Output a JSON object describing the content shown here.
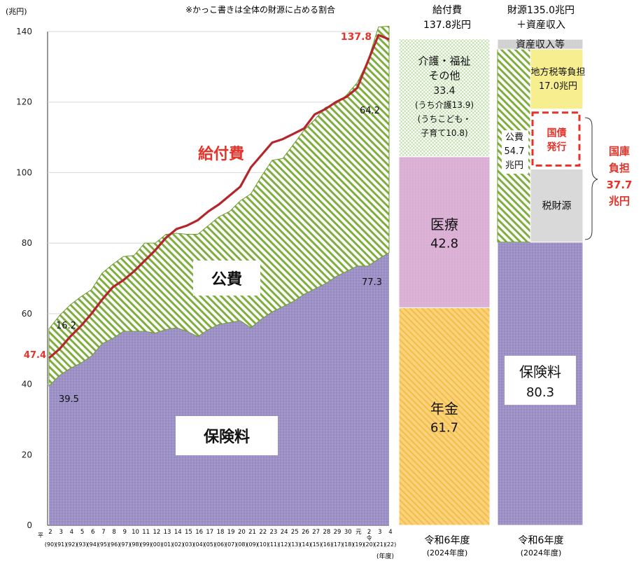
{
  "chart_data": {
    "type": "area",
    "note": "※かっこ書きは全体の財源に占める割合",
    "yunit": "(兆円)",
    "ylim": [
      0,
      140
    ],
    "yticks": [
      0,
      20,
      40,
      60,
      80,
      100,
      120,
      140
    ],
    "xunit": "(年度)",
    "x_heisei": [
      "平",
      "2",
      "3",
      "4",
      "5",
      "6",
      "7",
      "8",
      "9",
      "10",
      "11",
      "12",
      "13",
      "14",
      "15",
      "16",
      "17",
      "18",
      "19",
      "20",
      "21",
      "22",
      "23",
      "24",
      "25",
      "26",
      "27",
      "28",
      "29",
      "30",
      "元",
      "2",
      "3",
      "4"
    ],
    "x_western": [
      "(90)",
      "(91)",
      "(92)",
      "(93)",
      "(94)",
      "(95)",
      "(96)",
      "(97)",
      "(98)",
      "(99)",
      "(00)",
      "(01)",
      "(02)",
      "(03)",
      "(04)",
      "(05)",
      "(06)",
      "(07)",
      "(08)",
      "(09)",
      "(10)",
      "(11)",
      "(12)",
      "(13)",
      "(14)",
      "(15)",
      "(16)",
      "(17)",
      "(18)",
      "(19)",
      "(20)",
      "(21)",
      "(22)"
    ],
    "x_era_mark": "令",
    "series": [
      {
        "name": "保険料",
        "values": [
          39.5,
          42.5,
          44.5,
          46,
          48,
          51.5,
          53,
          55,
          55,
          55,
          54.5,
          55.5,
          56,
          55,
          53.5,
          55.5,
          57,
          57.5,
          58,
          56,
          58.5,
          60.5,
          62,
          63.5,
          65.5,
          67,
          68.5,
          70.5,
          72,
          73.5,
          73.5,
          75.5,
          77.3
        ]
      },
      {
        "name": "公費",
        "values": [
          16.2,
          17,
          18,
          18.8,
          18.8,
          20,
          21,
          21.2,
          21.5,
          25,
          25.5,
          27,
          26.8,
          27.5,
          29,
          29.5,
          30.5,
          31.5,
          34,
          38,
          40.5,
          43,
          42,
          44.5,
          46.5,
          48,
          50,
          49,
          50,
          52,
          58.2,
          65.8,
          64.2
        ]
      },
      {
        "name": "給付費",
        "values": [
          47.4,
          50,
          53.5,
          56.5,
          60,
          64,
          67.5,
          69.5,
          72,
          75,
          78,
          81.5,
          84,
          85,
          86.5,
          89,
          91,
          93.5,
          96,
          101.5,
          105,
          108.5,
          109.5,
          111,
          112.5,
          116.5,
          118,
          120,
          121.5,
          124,
          131.5,
          139,
          137.8
        ]
      }
    ],
    "labels": {
      "kyufuhi": "給付費",
      "kohi": "公費",
      "hokenryo": "保険料",
      "start_total": "47.4",
      "end_total": "137.8",
      "start_kohi": "16.2",
      "end_kohi": "64.2",
      "start_hokenryo": "39.5",
      "end_hokenryo": "77.3"
    },
    "stack_benefits": {
      "title": [
        "給付費",
        "137.8兆円"
      ],
      "xlabel": [
        "令和6年度",
        "(2024年度)"
      ],
      "segments": [
        {
          "name": "年金",
          "value": 61.7,
          "label": [
            "年金",
            "61.7"
          ]
        },
        {
          "name": "医療",
          "value": 42.8,
          "label": [
            "医療",
            "42.8"
          ]
        },
        {
          "name": "介護・福祉その他",
          "value": 33.4,
          "label": [
            "介護・福祉",
            "その他",
            "33.4",
            "(うち介護13.9)",
            "(うちこども・",
            "子育て10.8)"
          ]
        }
      ]
    },
    "stack_funding": {
      "title": [
        "財源135.0兆円",
        "＋資産収入"
      ],
      "xlabel": [
        "令和6年度",
        "(2024年度)"
      ],
      "segments": [
        {
          "name": "保険料",
          "value": 80.3,
          "label": [
            "保険料",
            "80.3"
          ]
        },
        {
          "name": "公費",
          "value": 54.7,
          "label": [
            "公費",
            "54.7",
            "兆円"
          ],
          "sub": [
            {
              "name": "税財源",
              "value": 20.7,
              "label": [
                "税財源"
              ]
            },
            {
              "name": "国債発行",
              "value": 17.0,
              "label": [
                "国債",
                "発行"
              ]
            },
            {
              "name": "地方税等負担",
              "value": 17.0,
              "label": [
                "地方税等負担",
                "17.0兆円"
              ]
            }
          ]
        },
        {
          "name": "資産収入等",
          "value": 2.8,
          "label": [
            "資産収入等"
          ]
        }
      ],
      "bracket_label": [
        "国庫",
        "負担",
        "37.7",
        "兆円"
      ]
    },
    "colors": {
      "hokenryo": "#9b8fc3",
      "kohi": "#7fae3e",
      "kyufuhi_line": "#b3262c",
      "red_text": "#e5332a",
      "nenkin": "#f7c85e",
      "iryo": "#dcb2d6",
      "kaigo": "#a8d08d",
      "chiho": "#f7ee8f",
      "zeizaigen": "#d9d9d9",
      "shisan": "#d0d0d0"
    }
  }
}
